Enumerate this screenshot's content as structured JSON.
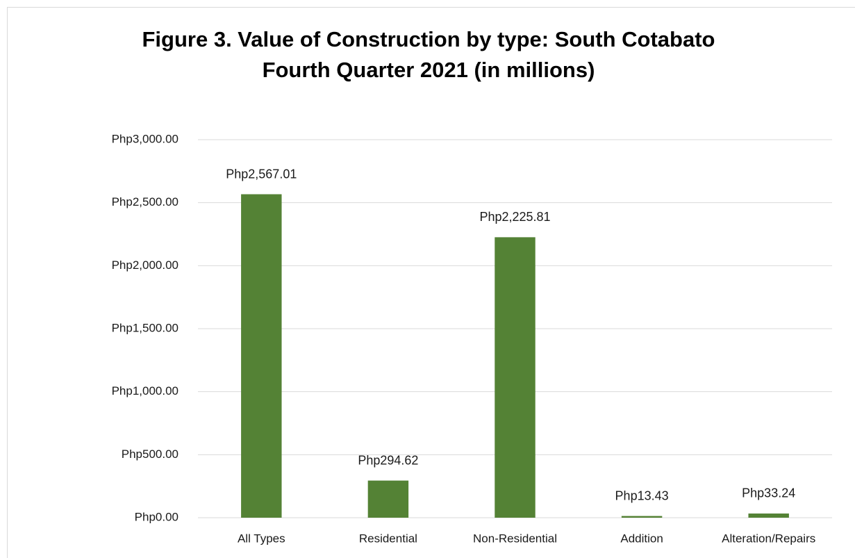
{
  "chart_data": {
    "type": "bar",
    "title": [
      "Figure 3. Value of Construction by type: South Cotabato",
      "Fourth Quarter 2021 (in millions)"
    ],
    "categories": [
      "All Types",
      "Residential",
      "Non-Residential",
      "Addition",
      "Alteration/Repairs"
    ],
    "values": [
      2567.01,
      294.62,
      2225.81,
      13.43,
      33.24
    ],
    "value_labels": [
      "Php2,567.01",
      "Php294.62",
      "Php2,225.81",
      "Php13.43",
      "Php33.24"
    ],
    "color": "#548235",
    "ylim": [
      0,
      3000
    ],
    "yticks": [
      {
        "value": 0,
        "label": "Php0.00"
      },
      {
        "value": 500,
        "label": "Php500.00"
      },
      {
        "value": 1000,
        "label": "Php1,000.00"
      },
      {
        "value": 1500,
        "label": "Php1,500.00"
      },
      {
        "value": 2000,
        "label": "Php2,000.00"
      },
      {
        "value": 2500,
        "label": "Php2,500.00"
      },
      {
        "value": 3000,
        "label": "Php3,000.00"
      }
    ],
    "grid": true
  }
}
